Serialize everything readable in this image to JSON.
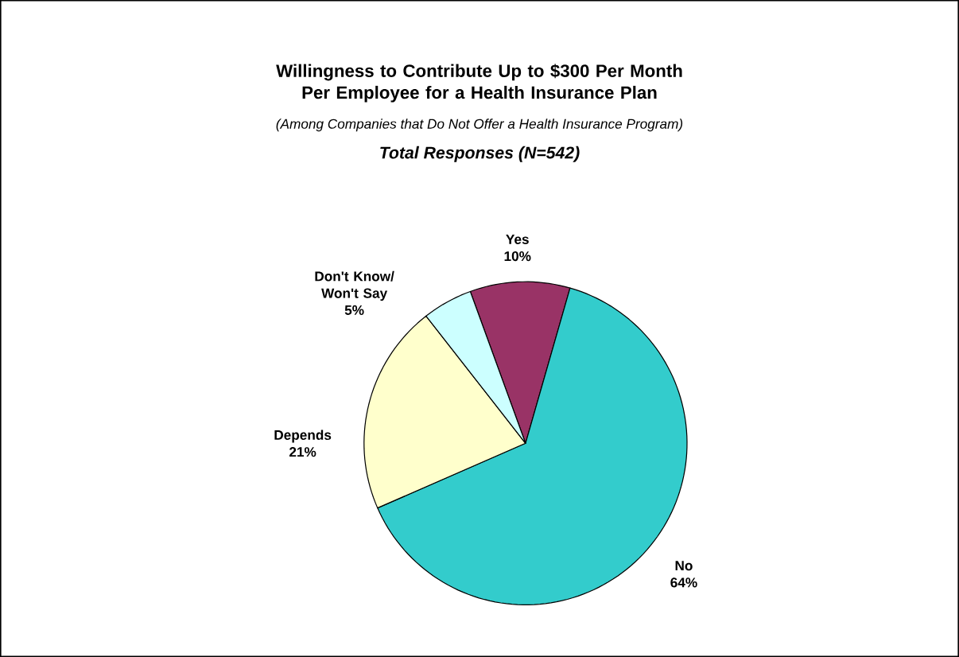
{
  "chart_data": {
    "type": "pie",
    "title": "Willingness to Contribute Up to $300 Per Month Per Employee for a Health Insurance Plan",
    "subtitle": "(Among Companies that Do Not Offer a Health Insurance Program)",
    "annotations": [
      "Total Responses (N=542)"
    ],
    "categories": [
      "Yes",
      "No",
      "Depends",
      "Don't Know/ Won't Say"
    ],
    "values": [
      10,
      64,
      21,
      5
    ],
    "colors": [
      "#993366",
      "#33cccc",
      "#ffffcc",
      "#ccffff"
    ],
    "value_labels": [
      "10%",
      "64%",
      "21%",
      "5%"
    ]
  }
}
